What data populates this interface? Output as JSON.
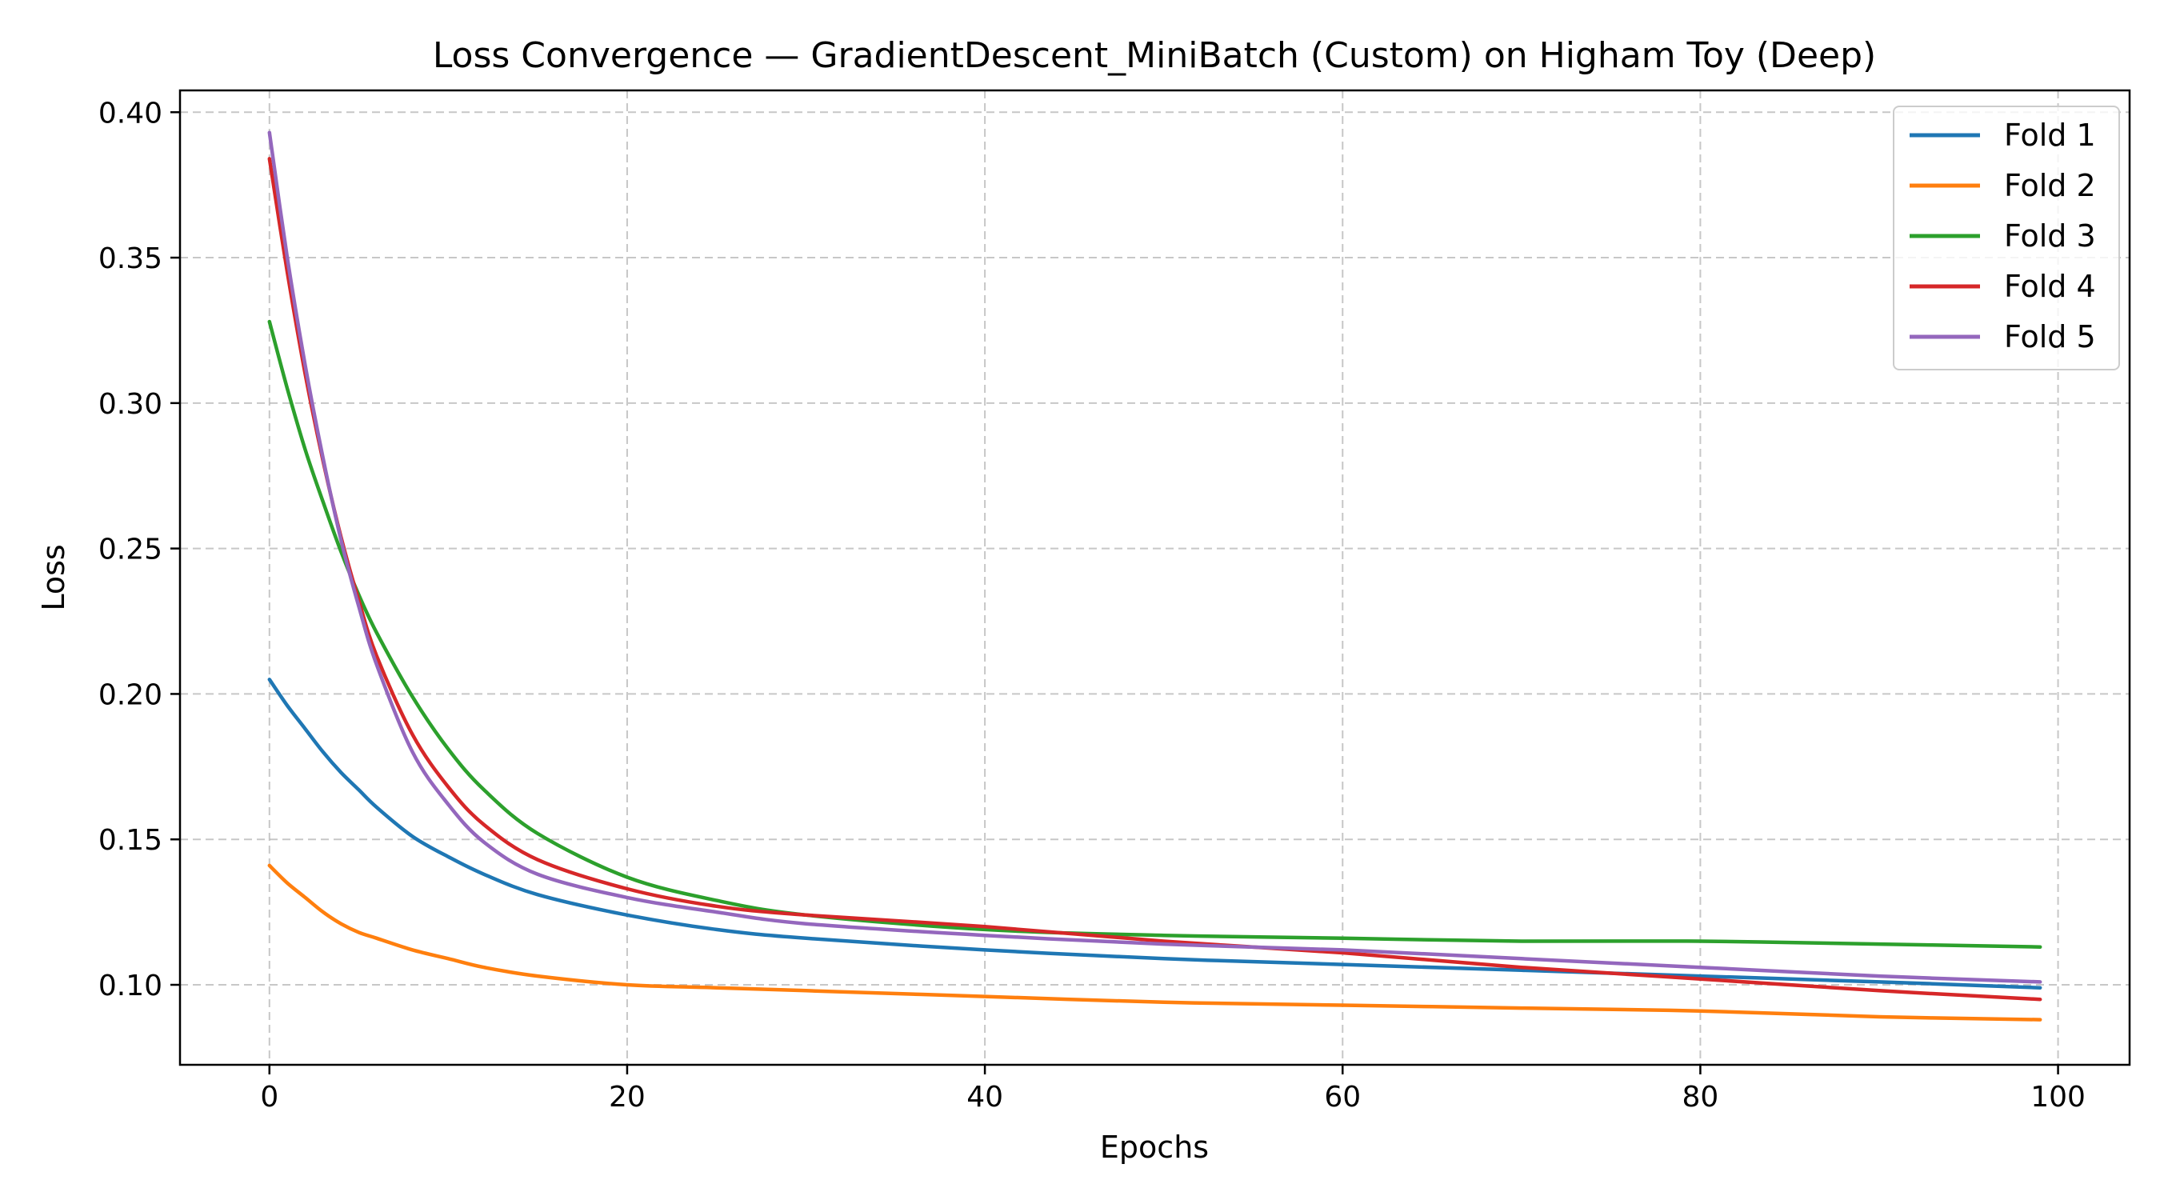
{
  "chart_data": {
    "type": "line",
    "title": "Loss Convergence — GradientDescent_MiniBatch (Custom) on Higham Toy (Deep)",
    "xlabel": "Epochs",
    "ylabel": "Loss",
    "xlim": [
      -5,
      104
    ],
    "ylim": [
      0.0725,
      0.4075
    ],
    "xticks": [
      0,
      20,
      40,
      60,
      80,
      100
    ],
    "yticks": [
      0.1,
      0.15,
      0.2,
      0.25,
      0.3,
      0.35,
      0.4
    ],
    "xtick_labels": [
      "0",
      "20",
      "40",
      "60",
      "80",
      "100"
    ],
    "ytick_labels": [
      "0.10",
      "0.15",
      "0.20",
      "0.25",
      "0.30",
      "0.35",
      "0.40"
    ],
    "grid": true,
    "legend_position": "top-right",
    "x": [
      0,
      1,
      2,
      3,
      4,
      5,
      6,
      8,
      10,
      12,
      15,
      20,
      25,
      30,
      40,
      50,
      60,
      70,
      80,
      90,
      99
    ],
    "series": [
      {
        "name": "Fold 1",
        "color": "#1f77b4",
        "values": [
          0.205,
          0.196,
          0.188,
          0.18,
          0.173,
          0.167,
          0.161,
          0.151,
          0.144,
          0.138,
          0.131,
          0.124,
          0.119,
          0.116,
          0.112,
          0.109,
          0.107,
          0.105,
          0.103,
          0.101,
          0.099
        ]
      },
      {
        "name": "Fold 2",
        "color": "#ff7f0e",
        "values": [
          0.141,
          0.135,
          0.13,
          0.125,
          0.121,
          0.118,
          0.116,
          0.112,
          0.109,
          0.106,
          0.103,
          0.1,
          0.099,
          0.098,
          0.096,
          0.094,
          0.093,
          0.092,
          0.091,
          0.089,
          0.088
        ]
      },
      {
        "name": "Fold 3",
        "color": "#2ca02c",
        "values": [
          0.328,
          0.305,
          0.284,
          0.266,
          0.249,
          0.234,
          0.221,
          0.199,
          0.181,
          0.167,
          0.152,
          0.137,
          0.129,
          0.124,
          0.119,
          0.117,
          0.116,
          0.115,
          0.115,
          0.114,
          0.113
        ]
      },
      {
        "name": "Fold 4",
        "color": "#d62728",
        "values": [
          0.384,
          0.345,
          0.31,
          0.28,
          0.254,
          0.232,
          0.213,
          0.186,
          0.168,
          0.155,
          0.143,
          0.133,
          0.127,
          0.124,
          0.12,
          0.115,
          0.111,
          0.106,
          0.102,
          0.098,
          0.095
        ]
      },
      {
        "name": "Fold 5",
        "color": "#9467bd",
        "values": [
          0.393,
          0.35,
          0.313,
          0.281,
          0.253,
          0.23,
          0.21,
          0.18,
          0.162,
          0.149,
          0.138,
          0.13,
          0.125,
          0.121,
          0.117,
          0.114,
          0.112,
          0.109,
          0.106,
          0.103,
          0.101
        ]
      }
    ]
  }
}
